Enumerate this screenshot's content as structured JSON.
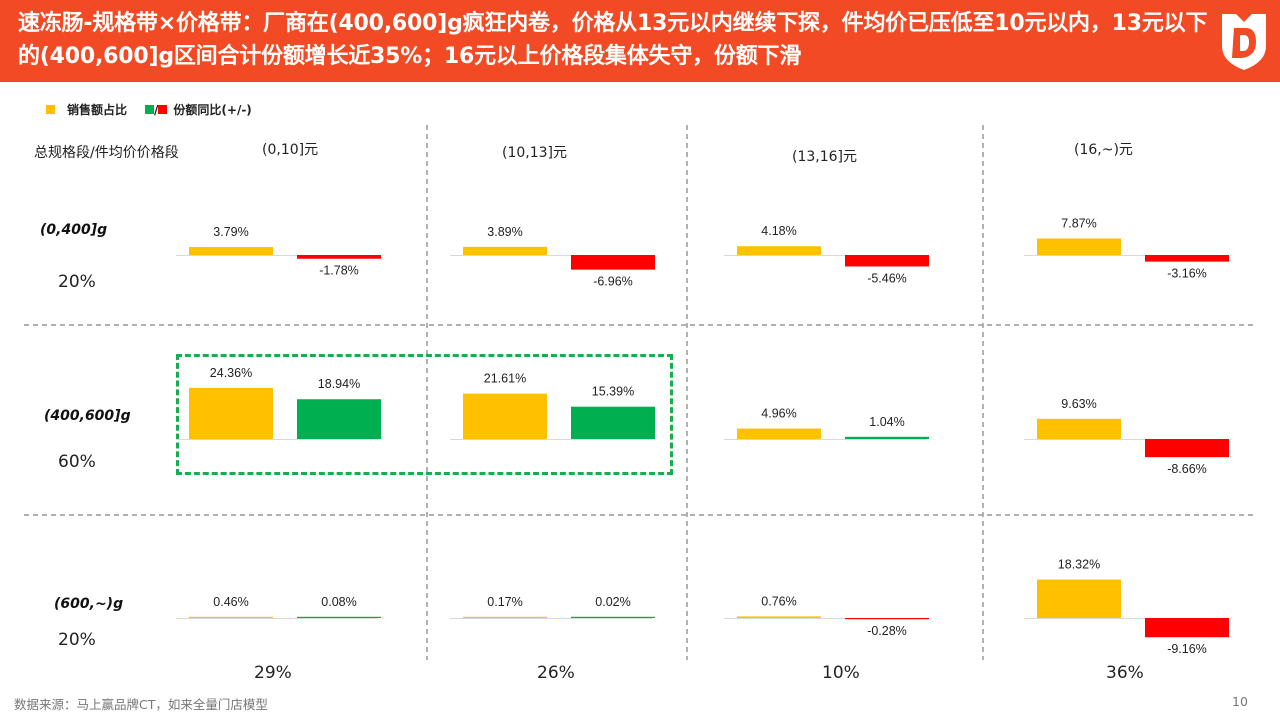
{
  "title": "速冻肠-规格带×价格带：厂商在(400,600]g疯狂内卷，价格从13元以内继续下探，件均价已压低至10元以内，13元以下的(400,600]g区间合计份额增长近35%；16元以上价格段集体失守，份额下滑",
  "legend": {
    "share_label": "销售额占比",
    "slash": "/",
    "yoy_label": "份额同比(+/-)"
  },
  "corner_label": "总规格段/件均价价格段",
  "columns": [
    "(0,10]元",
    "(10,13]元",
    "(13,16]元",
    "(16,~)元"
  ],
  "column_totals": [
    "29%",
    "26%",
    "10%",
    "36%"
  ],
  "rows": [
    {
      "label": "(0,400]g",
      "total": "20%"
    },
    {
      "label": "(400,600]g",
      "total": "60%"
    },
    {
      "label": "(600,~)g",
      "total": "20%"
    }
  ],
  "footer": "数据来源：马上赢品牌CT，如来全量门店模型",
  "page_number": "10",
  "colors": {
    "header": "#f24a24",
    "share": "#ffc000",
    "yoy_positive": "#00b050",
    "yoy_negative": "#ff0000",
    "highlight": "#1aad4f"
  },
  "chart_data": {
    "type": "bar",
    "ylabel": "",
    "xlabel": "",
    "categories": [
      "(0,10]元",
      "(10,13]元",
      "(13,16]元",
      "(16,~)元"
    ],
    "rows": [
      "(0,400]g",
      "(400,600]g",
      "(600,~)g"
    ],
    "series": [
      {
        "name": "销售额占比",
        "values": [
          [
            3.79,
            3.89,
            4.18,
            7.87
          ],
          [
            24.36,
            21.61,
            4.96,
            9.63
          ],
          [
            0.46,
            0.17,
            0.76,
            18.32
          ]
        ]
      },
      {
        "name": "份额同比(+/-)",
        "values": [
          [
            -1.78,
            -6.96,
            -5.46,
            -3.16
          ],
          [
            18.94,
            15.39,
            1.04,
            -8.66
          ],
          [
            0.08,
            0.02,
            -0.28,
            -9.16
          ]
        ]
      }
    ],
    "unit": "%",
    "highlight_cells": [
      [
        1,
        0
      ],
      [
        1,
        1
      ]
    ]
  }
}
